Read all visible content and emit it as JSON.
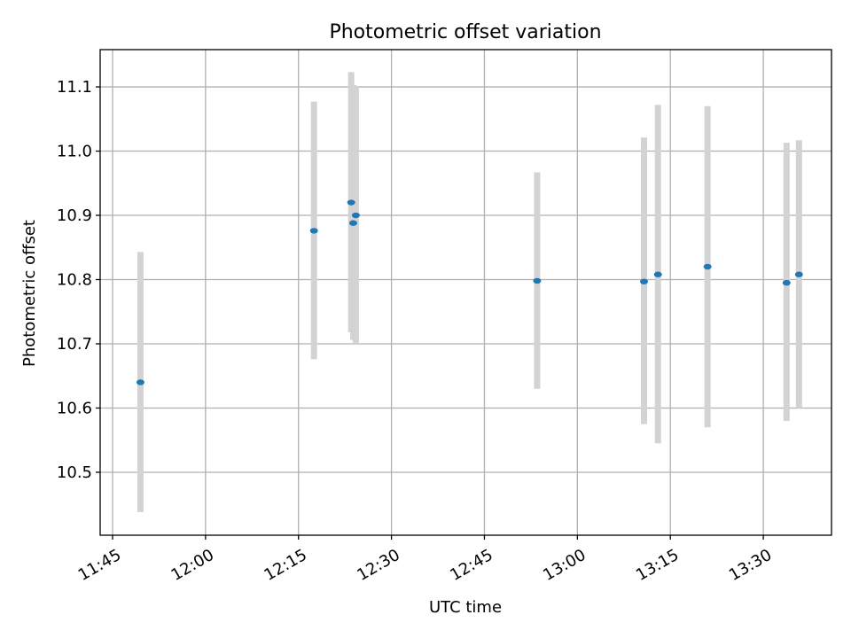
{
  "chart_data": {
    "type": "scatter",
    "title": "Photometric offset variation",
    "xlabel": "UTC time",
    "ylabel": "Photometric offset",
    "xlim": [
      "11:43",
      "13:41"
    ],
    "ylim": [
      10.402,
      11.158
    ],
    "grid": true,
    "x_ticks": [
      "11:45",
      "12:00",
      "12:15",
      "12:30",
      "12:45",
      "13:00",
      "13:15",
      "13:30"
    ],
    "y_ticks": [
      10.5,
      10.6,
      10.7,
      10.8,
      10.9,
      11.0,
      11.1
    ],
    "y_tick_labels": [
      "10.5",
      "10.6",
      "10.7",
      "10.8",
      "10.9",
      "11.0",
      "11.1"
    ],
    "series": [
      {
        "marker_color": "#1f77b4",
        "errorbar_color": "#d3d3d3",
        "points": [
          {
            "x": "11:49:30",
            "y": 10.64,
            "ylow": 10.438,
            "yhigh": 10.843
          },
          {
            "x": "12:17:30",
            "y": 10.876,
            "ylow": 10.676,
            "yhigh": 11.077
          },
          {
            "x": "12:23:30",
            "y": 10.92,
            "ylow": 10.718,
            "yhigh": 11.123
          },
          {
            "x": "12:23:50",
            "y": 10.888,
            "ylow": 10.706,
            "yhigh": 11.103
          },
          {
            "x": "12:24:15",
            "y": 10.9,
            "ylow": 10.7,
            "yhigh": 11.1
          },
          {
            "x": "12:53:30",
            "y": 10.798,
            "ylow": 10.63,
            "yhigh": 10.967
          },
          {
            "x": "13:10:45",
            "y": 10.797,
            "ylow": 10.575,
            "yhigh": 11.021
          },
          {
            "x": "13:13:00",
            "y": 10.808,
            "ylow": 10.545,
            "yhigh": 11.072
          },
          {
            "x": "13:21:00",
            "y": 10.82,
            "ylow": 10.57,
            "yhigh": 11.07
          },
          {
            "x": "13:33:45",
            "y": 10.795,
            "ylow": 10.58,
            "yhigh": 11.013
          },
          {
            "x": "13:35:45",
            "y": 10.808,
            "ylow": 10.6,
            "yhigh": 11.017
          }
        ]
      }
    ]
  }
}
